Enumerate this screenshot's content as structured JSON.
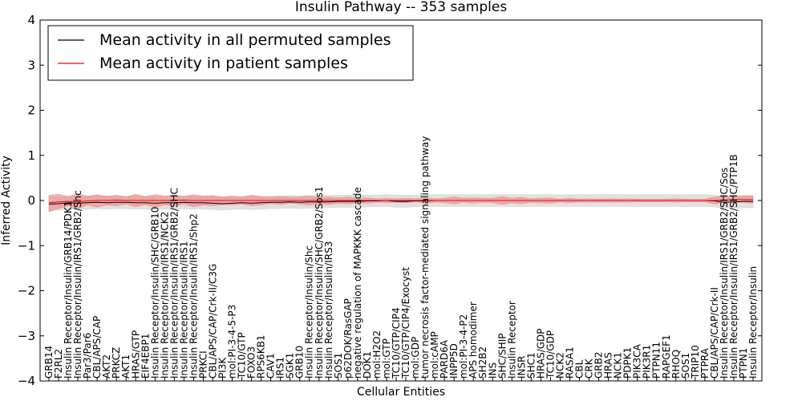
{
  "chart_data": {
    "type": "line",
    "title": "Insulin Pathway -- 353 samples",
    "xlabel": "Cellular Entities",
    "ylabel": "Inferred Activity",
    "ylim": [
      -4,
      4
    ],
    "yticks": [
      -4,
      -3,
      -2,
      -1,
      0,
      1,
      2,
      3,
      4
    ],
    "ytick_labels": [
      "−4",
      "−3",
      "−2",
      "−1",
      "0",
      "1",
      "2",
      "3",
      "4"
    ],
    "grid": false,
    "legend_position": "top-left",
    "colors": {
      "permuted": "#000000",
      "patient": "#ff0000",
      "patient_band": "#f08080",
      "permuted_band": "#c8c8c8"
    },
    "categories": [
      "GRB14",
      "F2RL2",
      "Insulin Receptor/Insulin/GRB14/PDK1",
      "Insulin Receptor/Insulin/IRS1/GRB2/Shc",
      "Par3/Par6",
      "CBL/APS/CAP",
      "AKT2",
      "PRKCZ",
      "AKT1",
      "HRAS/GTP",
      "EIF4EBP1",
      "Insulin Receptor/Insulin/SHC/GRB10",
      "Insulin Receptor/Insulin/IRS1/NCK2",
      "Insulin Receptor/Insulin/IRS1/GRB2/SHC",
      "Insulin Receptor/Insulin/IRS1",
      "Insulin Receptor/Insulin/IRS1/Shp2",
      "PRKCI",
      "CBL/APS/CAP/Crk-II/C3G",
      "PI3K",
      "mol:PI-3-4-5-P3",
      "TC10/GTP",
      "FOXO3",
      "RPS6KB1",
      "CAV1",
      "IRS1",
      "SGK1",
      "GRB10",
      "Insulin Receptor/Insulin/Shc",
      "Insulin Receptor/Insulin/SHC/GRB2/Sos1",
      "Insulin Receptor/Insulin/IRS3",
      "SOS1",
      "p62DOK/RasGAP",
      "negative regulation of MAPKKK cascade",
      "DOK1",
      "mol:H2O2",
      "mol:GTP",
      "TC10/GTP/CIP4",
      "TC10/GTP/CIP4/Exocyst",
      "mol:GDP",
      "tumor necrosis factor-mediated signaling pathway",
      "mol:cAMP",
      "PARD6A",
      "INPP5D",
      "mol:PI-3-4-P2",
      "APS homodimer",
      "SH2B2",
      "INS",
      "SHC/SHIP",
      "Insulin Receptor",
      "INSR",
      "SHC1",
      "HRAS/GDP",
      "TC10/GDP",
      "NCK2",
      "RASA1",
      "CBL",
      "CRK",
      "GRB2",
      "HRAS",
      "NCK1",
      "PDPK1",
      "PIK3CA",
      "PIK3R1",
      "PTPN11",
      "RAPGEF1",
      "RHOQ",
      "SOS1",
      "TRIP10",
      "PTPRA",
      "CBL/APS/CAP/Crk-II",
      "Insulin Receptor/Insulin/IRS1/GRB2/SHC/Sos",
      "Insulin Receptor/Insulin/IRS1/GRB2/SHC/PTP1B",
      "PTPN1",
      "Insulin Receptor/Insulin"
    ],
    "series": [
      {
        "name": "Mean activity in all permuted samples",
        "color": "#000000",
        "values": [
          -0.08,
          -0.07,
          -0.05,
          -0.06,
          -0.05,
          -0.04,
          -0.05,
          -0.04,
          -0.04,
          -0.05,
          -0.05,
          -0.06,
          -0.05,
          -0.05,
          -0.04,
          -0.05,
          -0.05,
          -0.06,
          -0.07,
          -0.06,
          -0.05,
          -0.06,
          -0.05,
          -0.04,
          -0.04,
          -0.03,
          -0.04,
          -0.03,
          -0.03,
          -0.03,
          -0.02,
          -0.02,
          -0.02,
          -0.01,
          -0.01,
          0.0,
          -0.02,
          -0.02,
          -0.01,
          -0.01,
          0.0,
          0.0,
          0.0,
          0.0,
          0.0,
          0.0,
          0.0,
          0.0,
          0.0,
          0.0,
          0.0,
          0.0,
          0.0,
          0.0,
          0.0,
          0.0,
          0.0,
          0.0,
          0.0,
          0.0,
          0.0,
          0.0,
          0.0,
          0.0,
          0.0,
          0.0,
          0.0,
          0.0,
          0.0,
          -0.01,
          -0.04,
          -0.03,
          -0.02,
          -0.02
        ],
        "band_low": [
          -0.22,
          -0.21,
          -0.2,
          -0.2,
          -0.19,
          -0.18,
          -0.19,
          -0.18,
          -0.18,
          -0.19,
          -0.19,
          -0.2,
          -0.19,
          -0.19,
          -0.18,
          -0.19,
          -0.19,
          -0.2,
          -0.21,
          -0.2,
          -0.19,
          -0.2,
          -0.19,
          -0.18,
          -0.18,
          -0.17,
          -0.18,
          -0.17,
          -0.16,
          -0.16,
          -0.15,
          -0.15,
          -0.15,
          -0.14,
          -0.14,
          -0.13,
          -0.15,
          -0.15,
          -0.14,
          -0.14,
          -0.13,
          -0.13,
          -0.13,
          -0.13,
          -0.13,
          -0.13,
          -0.13,
          -0.13,
          -0.13,
          -0.13,
          -0.13,
          -0.13,
          -0.13,
          -0.13,
          -0.13,
          -0.13,
          -0.13,
          -0.13,
          -0.13,
          -0.13,
          -0.13,
          -0.13,
          -0.13,
          -0.13,
          -0.13,
          -0.13,
          -0.13,
          -0.13,
          -0.13,
          -0.14,
          -0.18,
          -0.17,
          -0.16,
          -0.16
        ],
        "band_high": [
          0.08,
          0.08,
          0.09,
          0.09,
          0.1,
          0.1,
          0.1,
          0.1,
          0.1,
          0.09,
          0.09,
          0.09,
          0.09,
          0.09,
          0.1,
          0.09,
          0.09,
          0.09,
          0.08,
          0.09,
          0.09,
          0.09,
          0.09,
          0.1,
          0.1,
          0.11,
          0.1,
          0.11,
          0.11,
          0.11,
          0.12,
          0.12,
          0.12,
          0.12,
          0.12,
          0.13,
          0.12,
          0.12,
          0.12,
          0.12,
          0.13,
          0.13,
          0.13,
          0.13,
          0.13,
          0.13,
          0.13,
          0.13,
          0.13,
          0.13,
          0.13,
          0.13,
          0.13,
          0.13,
          0.13,
          0.13,
          0.13,
          0.13,
          0.13,
          0.13,
          0.13,
          0.13,
          0.13,
          0.13,
          0.13,
          0.13,
          0.13,
          0.13,
          0.13,
          0.12,
          0.1,
          0.1,
          0.11,
          0.11
        ]
      },
      {
        "name": "Mean activity in patient samples",
        "color": "#ff0000",
        "values": [
          -0.05,
          -0.03,
          -0.02,
          -0.03,
          -0.01,
          0.0,
          0.0,
          0.01,
          0.0,
          0.0,
          0.0,
          0.0,
          0.0,
          0.0,
          0.01,
          0.0,
          0.0,
          0.0,
          0.0,
          0.0,
          0.0,
          0.0,
          0.0,
          0.0,
          0.0,
          0.0,
          0.0,
          0.0,
          0.0,
          0.0,
          0.0,
          0.0,
          0.0,
          0.0,
          0.0,
          0.0,
          0.0,
          0.0,
          0.0,
          0.0,
          0.0,
          0.0,
          0.0,
          0.0,
          0.0,
          0.0,
          0.0,
          0.0,
          0.0,
          0.0,
          0.0,
          0.0,
          0.0,
          0.0,
          0.0,
          0.0,
          0.0,
          0.0,
          0.0,
          0.0,
          0.0,
          0.0,
          0.0,
          0.0,
          0.0,
          0.0,
          0.0,
          0.0,
          0.0,
          0.0,
          0.01,
          0.02,
          0.02,
          0.02
        ],
        "band_low": [
          -0.25,
          -0.18,
          -0.12,
          -0.18,
          -0.1,
          -0.15,
          -0.1,
          -0.12,
          -0.08,
          -0.14,
          -0.09,
          -0.15,
          -0.1,
          -0.12,
          -0.08,
          -0.14,
          -0.1,
          -0.12,
          -0.09,
          -0.1,
          -0.08,
          -0.12,
          -0.1,
          -0.07,
          -0.09,
          -0.06,
          -0.08,
          -0.1,
          -0.07,
          -0.09,
          -0.06,
          -0.08,
          -0.05,
          -0.06,
          -0.04,
          -0.05,
          -0.04,
          -0.05,
          -0.03,
          -0.06,
          -0.04,
          -0.05,
          -0.08,
          -0.04,
          -0.06,
          -0.04,
          -0.05,
          -0.09,
          -0.05,
          -0.07,
          -0.04,
          -0.05,
          -0.06,
          -0.03,
          -0.05,
          -0.03,
          -0.04,
          -0.03,
          -0.04,
          -0.03,
          -0.04,
          -0.03,
          -0.03,
          -0.03,
          -0.03,
          -0.04,
          -0.03,
          -0.03,
          -0.03,
          -0.08,
          -0.05,
          -0.04,
          -0.04,
          -0.06
        ],
        "band_high": [
          0.12,
          0.14,
          0.09,
          0.15,
          0.1,
          0.13,
          0.09,
          0.12,
          0.08,
          0.14,
          0.09,
          0.13,
          0.1,
          0.12,
          0.09,
          0.13,
          0.1,
          0.11,
          0.08,
          0.1,
          0.08,
          0.12,
          0.09,
          0.07,
          0.09,
          0.07,
          0.08,
          0.1,
          0.07,
          0.08,
          0.06,
          0.08,
          0.05,
          0.06,
          0.04,
          0.05,
          0.04,
          0.05,
          0.04,
          0.06,
          0.04,
          0.05,
          0.08,
          0.05,
          0.06,
          0.05,
          0.05,
          0.09,
          0.05,
          0.07,
          0.04,
          0.05,
          0.06,
          0.03,
          0.05,
          0.03,
          0.04,
          0.03,
          0.04,
          0.03,
          0.04,
          0.03,
          0.03,
          0.03,
          0.03,
          0.04,
          0.03,
          0.03,
          0.03,
          0.08,
          0.1,
          0.09,
          0.1,
          0.1
        ]
      }
    ]
  }
}
